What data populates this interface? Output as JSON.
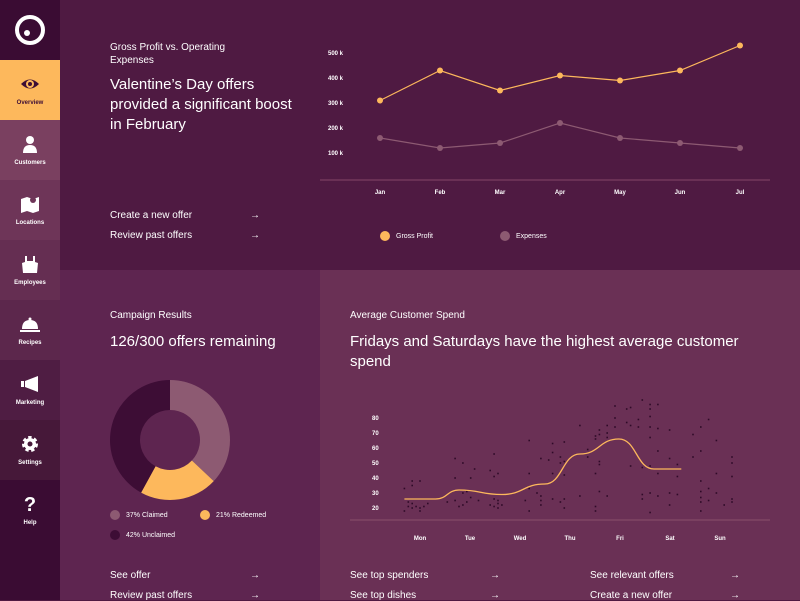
{
  "colors": {
    "accent": "#fdb85c",
    "expenses": "#8d5a72",
    "unclaimed": "#3d0d35"
  },
  "sidebar": {
    "items": [
      {
        "label": "Overview",
        "icon": "eye-icon",
        "active": true
      },
      {
        "label": "Customers",
        "icon": "person-icon"
      },
      {
        "label": "Locations",
        "icon": "map-icon"
      },
      {
        "label": "Employees",
        "icon": "apron-icon"
      },
      {
        "label": "Recipes",
        "icon": "cloche-icon"
      },
      {
        "label": "Marketing",
        "icon": "megaphone-icon"
      },
      {
        "label": "Settings",
        "icon": "gear-icon"
      },
      {
        "label": "Help",
        "icon": "question-icon"
      }
    ]
  },
  "top": {
    "subtitle": "Gross Profit vs. Operating Expenses",
    "headline": "Valentine’s Day offers provided a significant boost in February",
    "links": [
      {
        "label": "Create a new offer",
        "arrow": "→"
      },
      {
        "label": "Review past offers",
        "arrow": "→"
      }
    ]
  },
  "campaign": {
    "subtitle": "Campaign Results",
    "headline": "126/300 offers remaining",
    "legend": [
      "37% Claimed",
      "21% Redeemed",
      "42% Unclaimed"
    ],
    "links": [
      {
        "label": "See offer",
        "arrow": "→"
      },
      {
        "label": "Review past offers",
        "arrow": "→"
      }
    ]
  },
  "spend": {
    "subtitle": "Average Customer Spend",
    "headline": "Fridays and Saturdays have the highest average customer spend",
    "links": [
      {
        "label": "See top spenders",
        "arrow": "→"
      },
      {
        "label": "See top dishes",
        "arrow": "→"
      },
      {
        "label": "See relevant offers",
        "arrow": "→"
      },
      {
        "label": "Create a new offer",
        "arrow": "→"
      }
    ]
  },
  "chart_data": [
    {
      "type": "line",
      "categories": [
        "Jan",
        "Feb",
        "Mar",
        "Apr",
        "May",
        "Jun",
        "Jul"
      ],
      "yticks": [
        "100 k",
        "200 k",
        "300 k",
        "400 k",
        "500 k"
      ],
      "ylim": [
        0,
        500000
      ],
      "series": [
        {
          "name": "Gross Profit",
          "color": "#fdb85c",
          "values": [
            310000,
            430000,
            350000,
            410000,
            390000,
            430000,
            530000
          ]
        },
        {
          "name": "Expenses",
          "color": "#8d5a72",
          "values": [
            160000,
            120000,
            140000,
            220000,
            160000,
            140000,
            120000
          ]
        }
      ],
      "legend": "bottom"
    },
    {
      "type": "pie",
      "donut": true,
      "slices": [
        {
          "label": "Claimed",
          "value": 37,
          "color": "#8d5a72"
        },
        {
          "label": "Redeemed",
          "value": 21,
          "color": "#fdb85c"
        },
        {
          "label": "Unclaimed",
          "value": 42,
          "color": "#3d0d35"
        }
      ]
    },
    {
      "type": "scatter",
      "categories": [
        "Mon",
        "Tue",
        "Wed",
        "Thu",
        "Fri",
        "Sat",
        "Sun"
      ],
      "yticks": [
        20,
        30,
        40,
        50,
        60,
        70,
        80
      ],
      "trend": [
        [
          -0.4,
          26
        ],
        [
          0.4,
          26
        ],
        [
          1,
          32
        ],
        [
          2.1,
          29
        ],
        [
          3.2,
          36
        ],
        [
          4.1,
          56
        ],
        [
          5.1,
          66
        ],
        [
          6,
          46
        ],
        [
          6.7,
          46
        ]
      ],
      "points": [
        [
          -0.4,
          33
        ],
        [
          -0.4,
          18
        ],
        [
          -0.3,
          24
        ],
        [
          -0.3,
          21
        ],
        [
          -0.2,
          38
        ],
        [
          -0.2,
          35
        ],
        [
          -0.2,
          23
        ],
        [
          -0.2,
          20
        ],
        [
          -0.1,
          21
        ],
        [
          0,
          38
        ],
        [
          0,
          20
        ],
        [
          0,
          18
        ],
        [
          0.1,
          21
        ],
        [
          0.2,
          23
        ],
        [
          0.7,
          24
        ],
        [
          0.9,
          53
        ],
        [
          0.9,
          40
        ],
        [
          0.9,
          25
        ],
        [
          1.0,
          21
        ],
        [
          1.1,
          50
        ],
        [
          1.1,
          30
        ],
        [
          1.1,
          22
        ],
        [
          1.2,
          31
        ],
        [
          1.2,
          24
        ],
        [
          1.3,
          40
        ],
        [
          1.3,
          27
        ],
        [
          1.4,
          46
        ],
        [
          1.5,
          25
        ],
        [
          1.8,
          45
        ],
        [
          1.8,
          22
        ],
        [
          1.9,
          56
        ],
        [
          1.9,
          41
        ],
        [
          1.9,
          26
        ],
        [
          1.9,
          21
        ],
        [
          2.0,
          43
        ],
        [
          2.0,
          25
        ],
        [
          2.0,
          23
        ],
        [
          2.0,
          20
        ],
        [
          2.1,
          22
        ],
        [
          2.7,
          25
        ],
        [
          2.8,
          65
        ],
        [
          2.8,
          43
        ],
        [
          2.8,
          33
        ],
        [
          2.8,
          18
        ],
        [
          3.0,
          30
        ],
        [
          3.1,
          53
        ],
        [
          3.1,
          28
        ],
        [
          3.1,
          25
        ],
        [
          3.1,
          22
        ],
        [
          3.3,
          52
        ],
        [
          3.4,
          63
        ],
        [
          3.4,
          57
        ],
        [
          3.4,
          43
        ],
        [
          3.4,
          26
        ],
        [
          3.6,
          54
        ],
        [
          3.6,
          50
        ],
        [
          3.6,
          24
        ],
        [
          3.7,
          64
        ],
        [
          3.7,
          51
        ],
        [
          3.7,
          42
        ],
        [
          3.7,
          26
        ],
        [
          3.7,
          20
        ],
        [
          4.1,
          75
        ],
        [
          4.1,
          28
        ],
        [
          4.3,
          59
        ],
        [
          4.3,
          54
        ],
        [
          4.5,
          68
        ],
        [
          4.5,
          66
        ],
        [
          4.5,
          43
        ],
        [
          4.5,
          21
        ],
        [
          4.5,
          18
        ],
        [
          4.6,
          72
        ],
        [
          4.6,
          69
        ],
        [
          4.6,
          51
        ],
        [
          4.6,
          49
        ],
        [
          4.6,
          31
        ],
        [
          4.8,
          75
        ],
        [
          4.8,
          70
        ],
        [
          4.8,
          67
        ],
        [
          4.8,
          28
        ],
        [
          5.0,
          88
        ],
        [
          5.0,
          80
        ],
        [
          5.0,
          74
        ],
        [
          5.3,
          86
        ],
        [
          5.3,
          77
        ],
        [
          5.4,
          87
        ],
        [
          5.4,
          75
        ],
        [
          5.4,
          48
        ],
        [
          5.6,
          79
        ],
        [
          5.6,
          74
        ],
        [
          5.7,
          92
        ],
        [
          5.7,
          47
        ],
        [
          5.7,
          29
        ],
        [
          5.7,
          26
        ],
        [
          5.9,
          89
        ],
        [
          5.9,
          86
        ],
        [
          5.9,
          81
        ],
        [
          5.9,
          74
        ],
        [
          5.9,
          67
        ],
        [
          5.9,
          48
        ],
        [
          5.9,
          30
        ],
        [
          5.9,
          17
        ],
        [
          6.1,
          89
        ],
        [
          6.1,
          73
        ],
        [
          6.1,
          58
        ],
        [
          6.1,
          43
        ],
        [
          6.1,
          28
        ],
        [
          6.4,
          72
        ],
        [
          6.4,
          53
        ],
        [
          6.4,
          30
        ],
        [
          6.4,
          22
        ],
        [
          6.6,
          49
        ],
        [
          6.6,
          41
        ],
        [
          6.6,
          29
        ],
        [
          7.0,
          69
        ],
        [
          7.0,
          54
        ],
        [
          7.2,
          74
        ],
        [
          7.2,
          58
        ],
        [
          7.2,
          38
        ],
        [
          7.2,
          31
        ],
        [
          7.2,
          27
        ],
        [
          7.2,
          24
        ],
        [
          7.2,
          18
        ],
        [
          7.4,
          79
        ],
        [
          7.4,
          33
        ],
        [
          7.4,
          25
        ],
        [
          7.6,
          65
        ],
        [
          7.6,
          43
        ],
        [
          7.6,
          30
        ],
        [
          7.8,
          22
        ],
        [
          8.0,
          54
        ],
        [
          8.0,
          50
        ],
        [
          8.0,
          41
        ],
        [
          8.0,
          26
        ],
        [
          8.0,
          24
        ]
      ]
    }
  ]
}
